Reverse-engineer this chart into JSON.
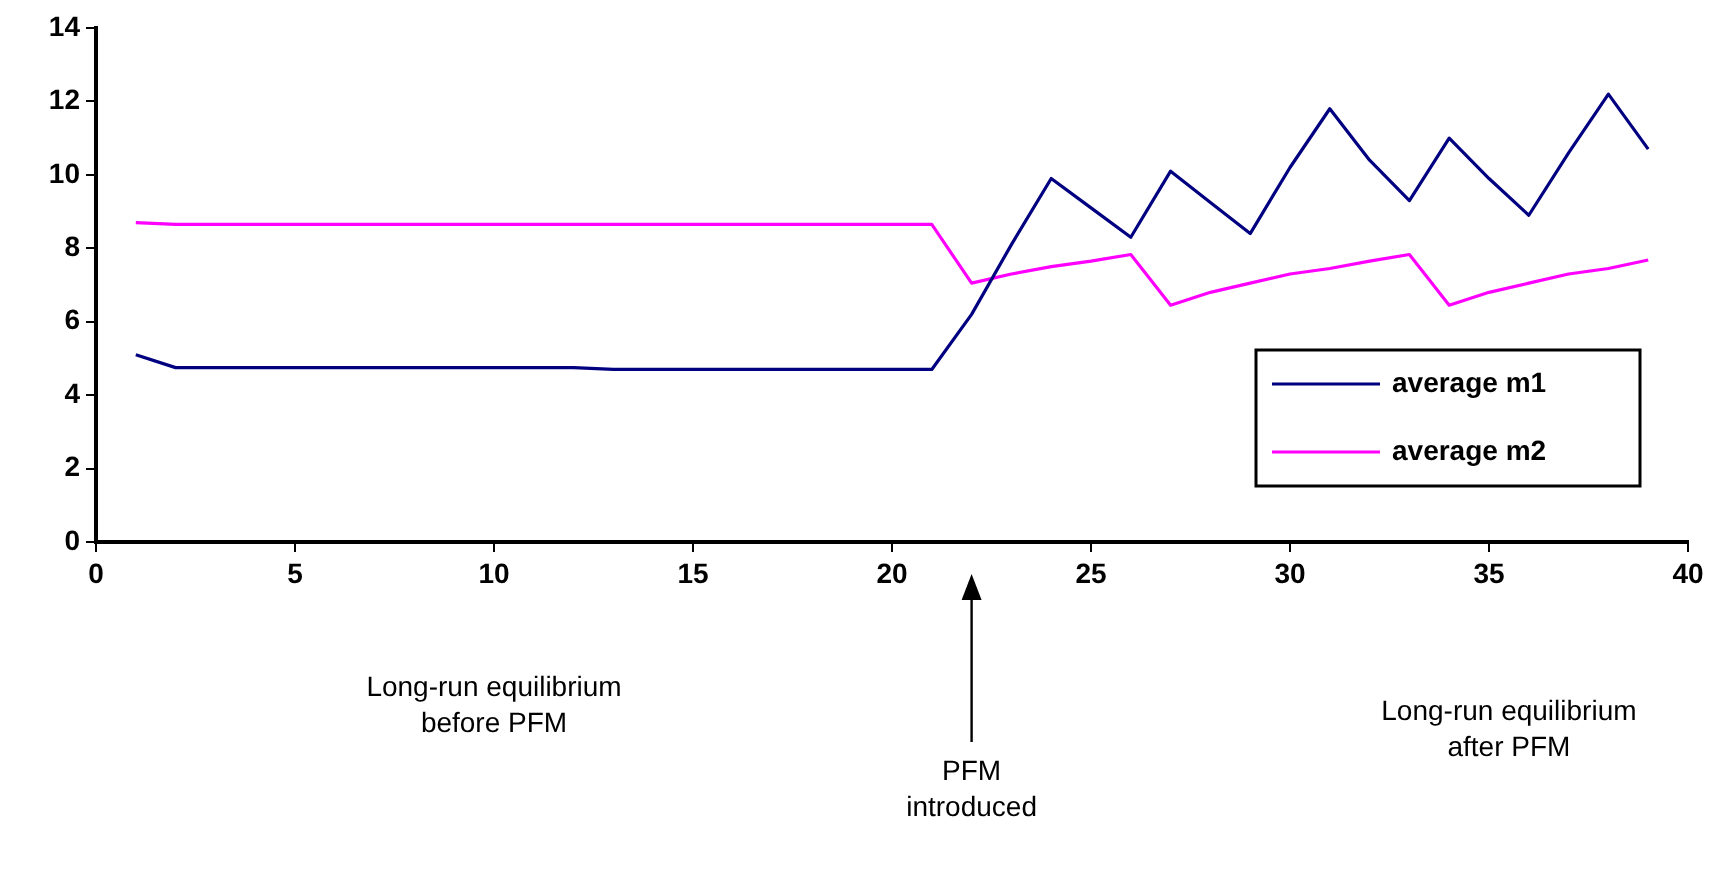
{
  "chart_data": {
    "type": "line",
    "x": [
      1,
      2,
      3,
      4,
      5,
      6,
      7,
      8,
      9,
      10,
      11,
      12,
      13,
      14,
      15,
      16,
      17,
      18,
      19,
      20,
      21,
      22,
      23,
      24,
      25,
      26,
      27,
      28,
      29,
      30,
      31,
      32,
      33,
      34,
      35,
      36,
      37,
      38,
      39
    ],
    "series": [
      {
        "name": "average m1",
        "color": "#000080",
        "values": [
          5.1,
          4.75,
          4.75,
          4.75,
          4.75,
          4.75,
          4.75,
          4.75,
          4.75,
          4.75,
          4.75,
          4.75,
          4.7,
          4.7,
          4.7,
          4.7,
          4.7,
          4.7,
          4.7,
          4.7,
          4.7,
          6.2,
          8.1,
          9.9,
          9.1,
          8.3,
          10.1,
          9.25,
          8.4,
          10.2,
          11.8,
          10.4,
          9.3,
          11.0,
          9.9,
          8.9,
          10.6,
          12.2,
          10.7
        ]
      },
      {
        "name": "average m2",
        "color": "#ff00ff",
        "values": [
          8.7,
          8.65,
          8.65,
          8.65,
          8.65,
          8.65,
          8.65,
          8.65,
          8.65,
          8.65,
          8.65,
          8.65,
          8.65,
          8.65,
          8.65,
          8.65,
          8.65,
          8.65,
          8.65,
          8.65,
          8.65,
          7.05,
          7.3,
          7.5,
          7.65,
          7.83,
          6.45,
          6.8,
          7.05,
          7.3,
          7.45,
          7.65,
          7.83,
          6.45,
          6.8,
          7.05,
          7.3,
          7.45,
          7.68
        ]
      }
    ],
    "xlim": [
      0,
      40
    ],
    "xticks": [
      0,
      5,
      10,
      15,
      20,
      25,
      30,
      35,
      40
    ],
    "ylim": [
      0,
      14
    ],
    "yticks": [
      0,
      2,
      4,
      6,
      8,
      10,
      12,
      14
    ],
    "grid": false,
    "legend": "bottom right",
    "marker": "none",
    "line_style": "solid",
    "annotations": [
      "Long-run equilibrium\nbefore PFM",
      "PFM\nintroduced",
      "Long-run equilibrium\nafter PFM"
    ]
  }
}
